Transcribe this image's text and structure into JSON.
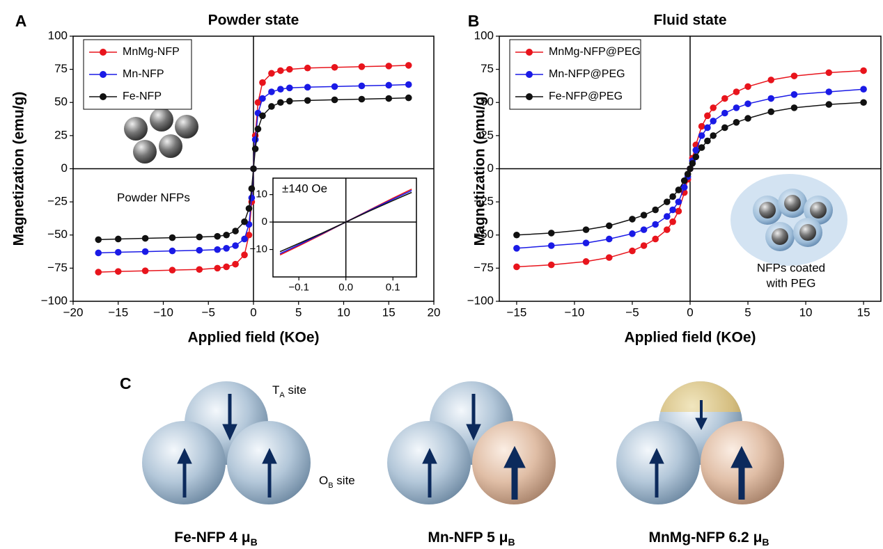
{
  "chart_data": [
    {
      "type": "line",
      "panel": "A",
      "title": "Powder state",
      "x_label": "Applied field (KOe)",
      "y_label": "Magnetization (emu/g)",
      "annotations": [
        "Powder NFPs"
      ],
      "markers": true,
      "legend": "upper left",
      "xlim": [
        -20,
        20
      ],
      "ylim": [
        -100,
        100
      ],
      "xticks": [
        {
          "value": -20,
          "label": "−20"
        },
        {
          "value": -15,
          "label": "−15"
        },
        {
          "value": -10,
          "label": "−10"
        },
        {
          "value": -5,
          "label": "−5"
        },
        0,
        5,
        10,
        15,
        20
      ],
      "yticks": [
        {
          "value": -100,
          "label": "−100"
        },
        {
          "value": -75,
          "label": "−75"
        },
        {
          "value": -50,
          "label": "−50"
        },
        {
          "value": -25,
          "label": "−25"
        },
        0,
        25,
        50,
        75,
        100
      ],
      "x": [
        -17.2,
        -15,
        -12,
        -9,
        -6,
        -4,
        -3,
        -2,
        -1,
        -0.5,
        -0.2,
        0,
        0.2,
        0.5,
        1,
        2,
        3,
        4,
        6,
        9,
        12,
        15,
        17.2
      ],
      "series": [
        {
          "name": "MnMg-NFP",
          "color": "#e8141c",
          "values": [
            -78,
            -77.5,
            -77,
            -76.5,
            -76,
            -75,
            -74,
            -72,
            -65,
            -50,
            -25,
            0,
            25,
            50,
            65,
            72,
            74,
            75,
            76,
            76.5,
            77,
            77.5,
            78
          ]
        },
        {
          "name": "Mn-NFP",
          "color": "#1a1ae6",
          "values": [
            -63.5,
            -63,
            -62.5,
            -62,
            -61.5,
            -61,
            -60,
            -58,
            -53,
            -42,
            -22,
            0,
            22,
            42,
            53,
            58,
            60,
            61,
            61.5,
            62,
            62.5,
            63,
            63.5
          ]
        },
        {
          "name": "Fe-NFP",
          "color": "#111111",
          "values": [
            -53.5,
            -53,
            -52.5,
            -52,
            -51.5,
            -51,
            -50,
            -47,
            -40,
            -30,
            -15,
            0,
            15,
            30,
            40,
            47,
            50,
            51,
            51.5,
            52,
            52.5,
            53,
            53.5
          ]
        }
      ]
    },
    {
      "type": "line",
      "annotations": [
        "±140 Oe"
      ],
      "markers": false,
      "xlim": [
        -0.155,
        0.15
      ],
      "ylim": [
        -20,
        16
      ],
      "xticks": [
        {
          "value": -0.1,
          "label": "−0.1"
        },
        {
          "value": 0,
          "label": "0.0"
        },
        0.1
      ],
      "yticks": [
        {
          "value": -10,
          "label": "−10"
        },
        0,
        10
      ],
      "x": [
        -0.14,
        -0.1,
        -0.05,
        0,
        0.05,
        0.1,
        0.14
      ],
      "series": [
        {
          "color": "#e8141c",
          "values": [
            -12,
            -8.7,
            -4.4,
            0,
            4.4,
            8.7,
            12
          ]
        },
        {
          "color": "#1a1ae6",
          "values": [
            -11.5,
            -8.3,
            -4.2,
            0,
            4.2,
            8.3,
            11.5
          ]
        },
        {
          "color": "#111111",
          "values": [
            -10.8,
            -7.8,
            -4,
            0,
            4,
            7.8,
            10.8
          ]
        }
      ]
    },
    {
      "type": "line",
      "panel": "B",
      "title": "Fluid state",
      "x_label": "Applied field (KOe)",
      "y_label": "Magnetization (emu/g)",
      "annotations": [
        "NFPs coated",
        "with PEG"
      ],
      "markers": true,
      "legend": "upper left",
      "xlim": [
        -16.5,
        16.5
      ],
      "ylim": [
        -100,
        100
      ],
      "xticks": [
        {
          "value": -15,
          "label": "−15"
        },
        {
          "value": -10,
          "label": "−10"
        },
        {
          "value": -5,
          "label": "−5"
        },
        0,
        5,
        10,
        15
      ],
      "yticks": [
        {
          "value": -100,
          "label": "−100"
        },
        {
          "value": -75,
          "label": "−75"
        },
        {
          "value": -50,
          "label": "−50"
        },
        {
          "value": -25,
          "label": "−25"
        },
        0,
        25,
        50,
        75,
        100
      ],
      "x": [
        -15,
        -12,
        -9,
        -7,
        -5,
        -4,
        -3,
        -2,
        -1.5,
        -1,
        -0.5,
        -0.2,
        0,
        0.2,
        0.5,
        1,
        1.5,
        2,
        3,
        4,
        5,
        7,
        9,
        12,
        15
      ],
      "series": [
        {
          "name": "MnMg-NFP@PEG",
          "color": "#e8141c",
          "values": [
            -74,
            -72.5,
            -70,
            -67,
            -62,
            -58,
            -53,
            -46,
            -40,
            -32,
            -18,
            -8,
            0,
            8,
            18,
            32,
            40,
            46,
            53,
            58,
            62,
            67,
            70,
            72.5,
            74
          ]
        },
        {
          "name": "Mn-NFP@PEG",
          "color": "#1a1ae6",
          "values": [
            -60,
            -58,
            -56,
            -53,
            -49,
            -46,
            -42,
            -36,
            -31,
            -25,
            -14,
            -6,
            0,
            6,
            14,
            25,
            31,
            36,
            42,
            46,
            49,
            53,
            56,
            58,
            60
          ]
        },
        {
          "name": "Fe-NFP@PEG",
          "color": "#111111",
          "values": [
            -50,
            -48.5,
            -46,
            -43,
            -38,
            -35,
            -31,
            -25,
            -21,
            -16,
            -9,
            -4,
            0,
            4,
            9,
            16,
            21,
            25,
            31,
            35,
            38,
            43,
            46,
            48.5,
            50
          ]
        }
      ]
    }
  ],
  "diagram": {
    "panel": "C",
    "ta_site": {
      "text": "T",
      "sub": "A",
      "suffix": " site"
    },
    "ob_site": {
      "text": "O",
      "sub": "B",
      "suffix": " site"
    },
    "captions": [
      {
        "text": "Fe-NFP 4 μ",
        "sub": "B"
      },
      {
        "text": "Mn-NFP 5 μ",
        "sub": "B"
      },
      {
        "text": "MnMg-NFP 6.2 μ",
        "sub": "B"
      }
    ]
  }
}
